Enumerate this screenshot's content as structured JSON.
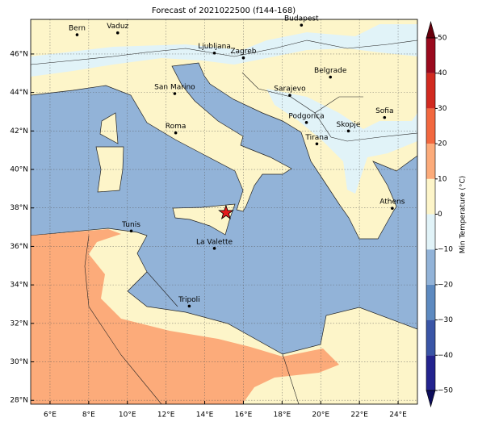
{
  "title": "Forecast of 2021022500 (f144-168)",
  "map": {
    "xlim": [
      5,
      25
    ],
    "ylim": [
      27.8,
      47.8
    ],
    "xticks": [
      {
        "value": 6,
        "label": "6°E"
      },
      {
        "value": 8,
        "label": "8°E"
      },
      {
        "value": 10,
        "label": "10°E"
      },
      {
        "value": 12,
        "label": "12°E"
      },
      {
        "value": 14,
        "label": "14°E"
      },
      {
        "value": 16,
        "label": "16°E"
      },
      {
        "value": 18,
        "label": "18°E"
      },
      {
        "value": 20,
        "label": "20°E"
      },
      {
        "value": 22,
        "label": "22°E"
      },
      {
        "value": 24,
        "label": "24°E"
      }
    ],
    "yticks": [
      {
        "value": 28,
        "label": "28°N"
      },
      {
        "value": 30,
        "label": "30°N"
      },
      {
        "value": 32,
        "label": "32°N"
      },
      {
        "value": 34,
        "label": "34°N"
      },
      {
        "value": 36,
        "label": "36°N"
      },
      {
        "value": 38,
        "label": "38°N"
      },
      {
        "value": 40,
        "label": "40°N"
      },
      {
        "value": 42,
        "label": "42°N"
      },
      {
        "value": 44,
        "label": "44°N"
      },
      {
        "value": 46,
        "label": "46°N"
      }
    ],
    "grid": true,
    "cities": [
      {
        "name": "Bern",
        "lon": 7.4,
        "lat": 47.0
      },
      {
        "name": "Vaduz",
        "lon": 9.5,
        "lat": 47.1
      },
      {
        "name": "Budapest",
        "lon": 19.0,
        "lat": 47.5
      },
      {
        "name": "Ljubljana",
        "lon": 14.5,
        "lat": 46.05
      },
      {
        "name": "Zagreb",
        "lon": 16.0,
        "lat": 45.8
      },
      {
        "name": "Belgrade",
        "lon": 20.5,
        "lat": 44.8
      },
      {
        "name": "San Marino",
        "lon": 12.45,
        "lat": 43.94
      },
      {
        "name": "Sarajevo",
        "lon": 18.4,
        "lat": 43.85
      },
      {
        "name": "Sofia",
        "lon": 23.3,
        "lat": 42.7
      },
      {
        "name": "Roma",
        "lon": 12.5,
        "lat": 41.9
      },
      {
        "name": "Podgorica",
        "lon": 19.26,
        "lat": 42.44
      },
      {
        "name": "Skopje",
        "lon": 21.43,
        "lat": 42.0
      },
      {
        "name": "Tirana",
        "lon": 19.8,
        "lat": 41.33
      },
      {
        "name": "Athens",
        "lon": 23.7,
        "lat": 37.98
      },
      {
        "name": "Tunis",
        "lon": 10.2,
        "lat": 36.8
      },
      {
        "name": "La Valette",
        "lon": 14.5,
        "lat": 35.9
      },
      {
        "name": "Tripoli",
        "lon": 13.2,
        "lat": 32.9
      }
    ],
    "marker": {
      "lon": 15.1,
      "lat": 37.75,
      "color": "#e41a1c"
    }
  },
  "colorbar": {
    "label": "Min Temperature (°C)",
    "lim": [
      -50,
      50
    ],
    "ticks": [
      {
        "value": -50,
        "label": "−50"
      },
      {
        "value": -40,
        "label": "−40"
      },
      {
        "value": -30,
        "label": "−30"
      },
      {
        "value": -20,
        "label": "−20"
      },
      {
        "value": -10,
        "label": "−10"
      },
      0,
      10,
      20,
      30,
      40,
      50
    ],
    "colors": [
      "#23238e",
      "#3a55a6",
      "#5d8ac0",
      "#92b3d8",
      "#e1f3f8",
      "#fdf5c9",
      "#fcab7a",
      "#f2683f",
      "#d12a20",
      "#9a0a1e"
    ],
    "under_color": "#0d0d5c",
    "over_color": "#67000d"
  }
}
